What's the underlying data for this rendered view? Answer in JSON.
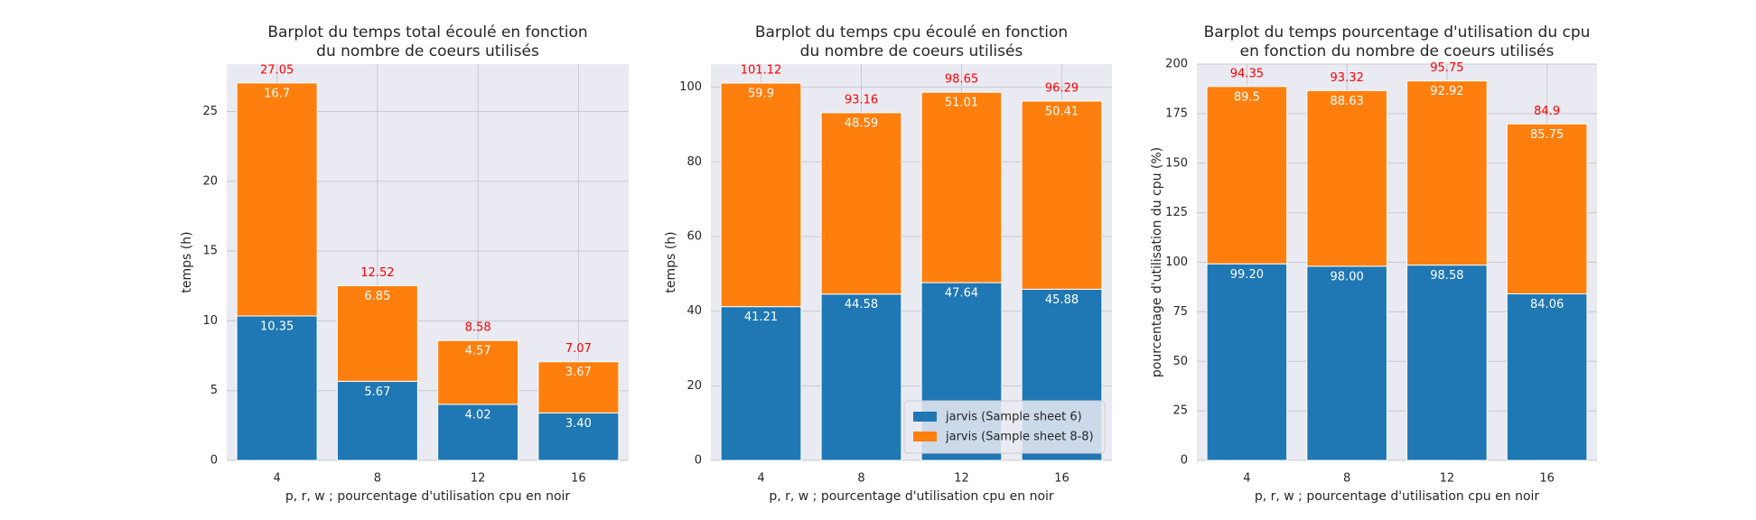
{
  "chart_data": [
    {
      "type": "bar",
      "stacked": true,
      "title": [
        "Barplot du temps total écoulé en fonction",
        "du nombre de coeurs utilisés"
      ],
      "xlabel": "p, r, w ; pourcentage d'utilisation cpu en noir",
      "ylabel": "temps (h)",
      "categories": [
        "4",
        "8",
        "12",
        "16"
      ],
      "series": [
        {
          "color": "#1f77b4",
          "values": [
            10.35,
            5.67,
            4.02,
            3.4
          ],
          "value_labels": [
            "10.35",
            "5.67",
            "4.02",
            "3.40"
          ]
        },
        {
          "color": "#ff7f0e",
          "values": [
            16.7,
            6.85,
            4.57,
            3.67
          ]
        }
      ],
      "annotations": [
        27.05,
        12.52,
        8.58,
        7.07
      ],
      "annotation_color": "red",
      "ylim": [
        0,
        28.4
      ],
      "yticks": [
        0,
        5,
        10,
        15,
        20,
        25
      ],
      "grid": true
    },
    {
      "type": "bar",
      "stacked": true,
      "title": [
        "Barplot du temps cpu écoulé en fonction",
        "du nombre de coeurs utilisés"
      ],
      "xlabel": "p, r, w ; pourcentage d'utilisation cpu en noir",
      "ylabel": "temps (h)",
      "categories": [
        "4",
        "8",
        "12",
        "16"
      ],
      "series": [
        {
          "name": "jarvis (Sample sheet 6)",
          "color": "#1f77b4",
          "values": [
            41.21,
            44.58,
            47.64,
            45.88
          ]
        },
        {
          "name": "jarvis (Sample sheet 8-8)",
          "color": "#ff7f0e",
          "values": [
            59.9,
            48.59,
            51.01,
            50.41
          ]
        }
      ],
      "annotations": [
        101.12,
        93.16,
        98.65,
        96.29
      ],
      "annotation_color": "red",
      "ylim": [
        0,
        106.2
      ],
      "yticks": [
        0,
        20,
        40,
        60,
        80,
        100
      ],
      "grid": true,
      "legend": "lower right"
    },
    {
      "type": "bar",
      "stacked": true,
      "title": [
        "Barplot du temps pourcentage d'utilisation du cpu",
        "en fonction du nombre de coeurs utilisés"
      ],
      "xlabel": "p, r, w ; pourcentage d'utilisation cpu en noir",
      "ylabel": "pourcentage d'utilisation du cpu (%)",
      "categories": [
        "4",
        "8",
        "12",
        "16"
      ],
      "series": [
        {
          "color": "#1f77b4",
          "values": [
            99.2,
            98.0,
            98.58,
            84.06
          ],
          "value_labels": [
            "99.20",
            "98.00",
            "98.58",
            "84.06"
          ]
        },
        {
          "color": "#ff7f0e",
          "values": [
            89.5,
            88.63,
            92.92,
            85.75
          ]
        }
      ],
      "annotations": [
        94.35,
        93.32,
        95.75,
        84.9
      ],
      "annotation_color": "red",
      "ylim": [
        0,
        200
      ],
      "yticks": [
        0,
        25,
        50,
        75,
        100,
        125,
        150,
        175,
        200
      ],
      "grid": true
    }
  ]
}
